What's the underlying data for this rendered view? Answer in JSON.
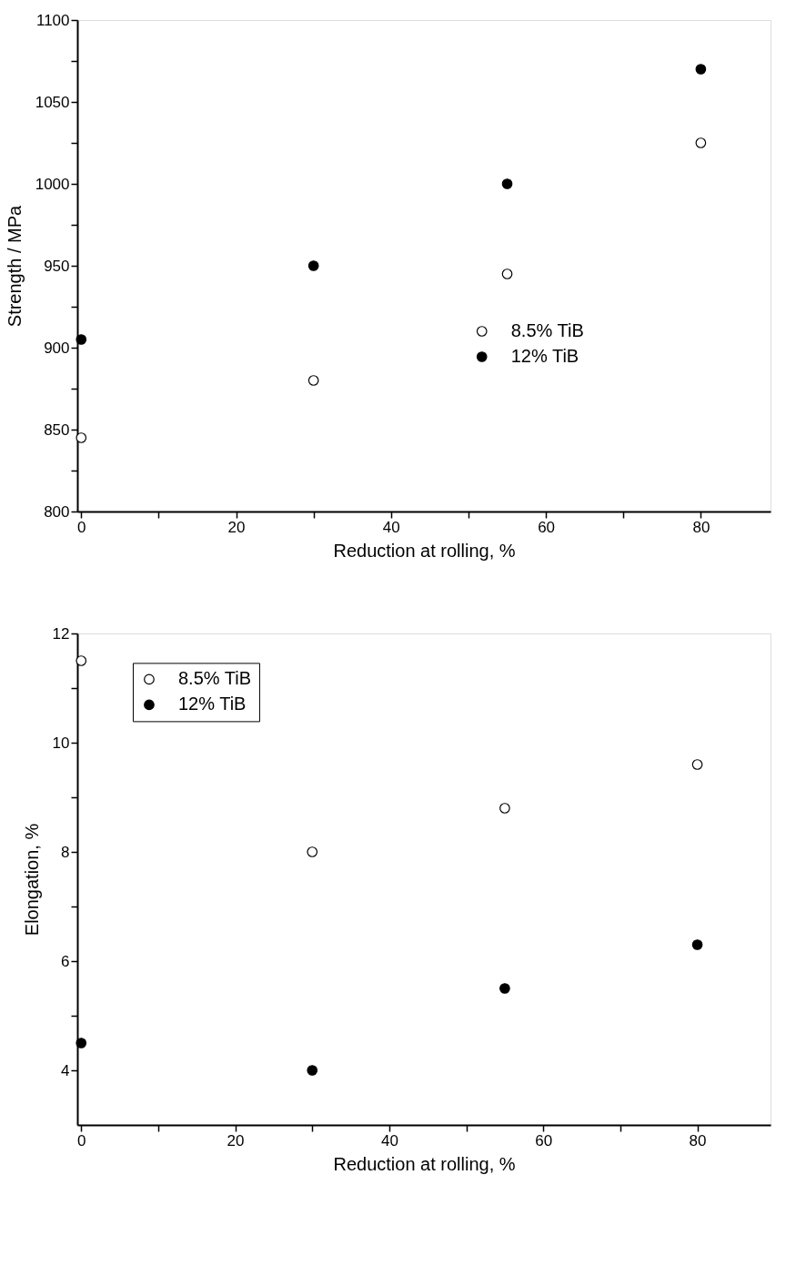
{
  "chart_data": [
    {
      "type": "scatter",
      "xlabel": "Reduction at rolling, %",
      "ylabel": "Strength / MPa",
      "x": [
        0,
        30,
        55,
        80
      ],
      "xlim": [
        -0.5,
        89
      ],
      "xticks": [
        0,
        {
          "value": 10,
          "label": null
        },
        20,
        {
          "value": 30,
          "label": null
        },
        40,
        {
          "value": 50,
          "label": null
        },
        60,
        {
          "value": 70,
          "label": null
        },
        80
      ],
      "ylim": [
        800,
        1100
      ],
      "yticks": [
        800,
        {
          "value": 825,
          "label": null
        },
        850,
        {
          "value": 875,
          "label": null
        },
        900,
        {
          "value": 925,
          "label": null
        },
        950,
        {
          "value": 975,
          "label": null
        },
        1000,
        {
          "value": 1025,
          "label": null
        },
        1050,
        {
          "value": 1075,
          "label": null
        },
        1100
      ],
      "series": [
        {
          "name": "8.5% TiB",
          "color": "#ffffff",
          "values": [
            845,
            880,
            945,
            1025
          ]
        },
        {
          "name": "12% TiB",
          "color": "#000000",
          "values": [
            905,
            950,
            1000,
            1070
          ]
        }
      ],
      "marker": "circle",
      "grid": false,
      "legend": "right"
    },
    {
      "type": "scatter",
      "xlabel": "Reduction at rolling, %",
      "ylabel": "Elongation, %",
      "x": [
        0,
        30,
        55,
        80
      ],
      "xlim": [
        -0.5,
        89.5
      ],
      "xticks": [
        0,
        {
          "value": 10,
          "label": null
        },
        20,
        {
          "value": 30,
          "label": null
        },
        40,
        {
          "value": 50,
          "label": null
        },
        60,
        {
          "value": 70,
          "label": null
        },
        80
      ],
      "ylim": [
        3,
        12
      ],
      "yticks": [
        4,
        {
          "value": 5,
          "label": null
        },
        6,
        {
          "value": 7,
          "label": null
        },
        8,
        {
          "value": 9,
          "label": null
        },
        10,
        {
          "value": 11,
          "label": null
        },
        12
      ],
      "series": [
        {
          "name": "8.5% TiB",
          "color": "#ffffff",
          "values": [
            11.5,
            8,
            8.8,
            9.6
          ]
        },
        {
          "name": "12% TiB",
          "color": "#000000",
          "values": [
            4.5,
            4,
            5.5,
            6.3
          ]
        }
      ],
      "marker": "circle",
      "grid": false,
      "legend": "top left"
    }
  ]
}
